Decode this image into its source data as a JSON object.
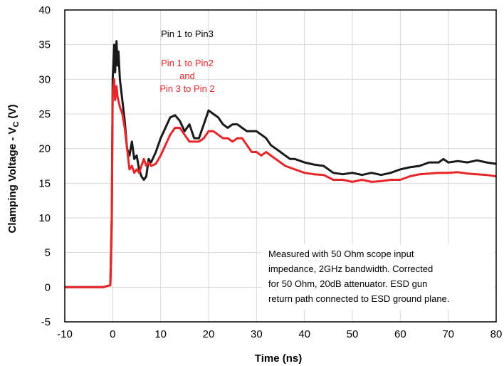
{
  "chart_data": {
    "type": "line",
    "title": "",
    "xlabel": "Time (ns)",
    "ylabel_main": "Clamping Voltage - V",
    "ylabel_sub": "C",
    "ylabel_unit": " (V)",
    "xlim": [
      -10,
      80
    ],
    "ylim": [
      -5,
      40
    ],
    "xticks": [
      -10,
      0,
      10,
      20,
      30,
      40,
      50,
      60,
      70,
      80
    ],
    "yticks": [
      -5,
      0,
      5,
      10,
      15,
      20,
      25,
      30,
      35,
      40
    ],
    "grid": true,
    "series": [
      {
        "name": "Pin 1 to Pin3",
        "color": "#1a1a1a",
        "x": [
          -10,
          -2,
          -0.5,
          -0.2,
          0,
          0.3,
          0.5,
          0.8,
          1.0,
          1.2,
          1.5,
          2.0,
          2.5,
          3.0,
          3.5,
          4.0,
          4.5,
          5.0,
          5.5,
          6.0,
          6.5,
          7.0,
          7.5,
          8.0,
          9.0,
          10.0,
          11.0,
          12.0,
          13.0,
          14.0,
          15.0,
          16.0,
          17.0,
          18.0,
          19.0,
          20.0,
          21.0,
          22.0,
          23.0,
          24.0,
          25.0,
          26.0,
          27.0,
          28.0,
          29.0,
          30.0,
          31.0,
          32.0,
          33.0,
          34.0,
          35.0,
          36.0,
          37.0,
          38.0,
          40.0,
          42.0,
          44.0,
          46.0,
          48.0,
          50.0,
          52.0,
          54.0,
          56.0,
          58.0,
          60.0,
          62.0,
          64.0,
          66.0,
          68.0,
          69.0,
          70.0,
          72.0,
          74.0,
          76.0,
          78.0,
          80.0
        ],
        "y": [
          0,
          0,
          0.3,
          10,
          30,
          35,
          31,
          35.5,
          32,
          34,
          30,
          27,
          24,
          20,
          19,
          21,
          18.5,
          19,
          17,
          16,
          15.5,
          16,
          18.5,
          18,
          19.5,
          21.5,
          23,
          24.5,
          24.8,
          24,
          22.5,
          23.5,
          21.5,
          21.5,
          23.5,
          25.5,
          25,
          24.5,
          23.5,
          23,
          23.5,
          23.5,
          23,
          22.5,
          22.5,
          22.5,
          22,
          21.5,
          20.5,
          20,
          19.5,
          19,
          18.5,
          18.5,
          18,
          17.7,
          17.5,
          16.5,
          16.3,
          16.5,
          16.2,
          16.5,
          16.2,
          16.5,
          17,
          17.3,
          17.5,
          18,
          18,
          18.5,
          18,
          18.2,
          18,
          18.3,
          18,
          17.8
        ]
      },
      {
        "name": "Pin 1 to Pin2 and Pin 3 to Pin 2",
        "color": "#e8262a",
        "x": [
          -10,
          -2,
          -0.5,
          -0.2,
          0,
          0.3,
          0.5,
          0.8,
          1.0,
          1.5,
          2.0,
          2.5,
          3.0,
          3.5,
          4.0,
          4.5,
          5.0,
          5.5,
          6.0,
          6.5,
          7.0,
          7.5,
          8.0,
          9.0,
          10.0,
          11.0,
          12.0,
          13.0,
          14.0,
          15.0,
          16.0,
          17.0,
          18.0,
          19.0,
          20.0,
          21.0,
          22.0,
          23.0,
          24.0,
          25.0,
          26.0,
          27.0,
          28.0,
          29.0,
          30.0,
          31.0,
          32.0,
          33.0,
          34.0,
          35.0,
          36.0,
          38.0,
          40.0,
          42.0,
          44.0,
          46.0,
          48.0,
          50.0,
          52.0,
          54.0,
          56.0,
          58.0,
          60.0,
          62.0,
          64.0,
          66.0,
          68.0,
          70.0,
          72.0,
          74.0,
          76.0,
          78.0,
          80.0
        ],
        "y": [
          0,
          0,
          0.3,
          10,
          28,
          30,
          27,
          29,
          27.5,
          26,
          25,
          23,
          20,
          17,
          17.5,
          16.5,
          17,
          16.5,
          17.5,
          18.5,
          17.5,
          18,
          17.5,
          17.8,
          19,
          20.5,
          22,
          23,
          23,
          22,
          21,
          21,
          21,
          21.5,
          22.5,
          22.5,
          22,
          21.5,
          21.5,
          21,
          21.5,
          21.5,
          20.5,
          19.5,
          19.5,
          19,
          19.5,
          19,
          18.5,
          18,
          17.5,
          17,
          16.5,
          16.3,
          16.2,
          15.5,
          15.5,
          15.2,
          15.5,
          15.2,
          15.3,
          15.5,
          15.5,
          16,
          16.3,
          16.4,
          16.5,
          16.5,
          16.6,
          16.4,
          16.3,
          16.2,
          16
        ]
      }
    ],
    "annotations": {
      "black_label": "Pin 1 to Pin3",
      "red_label_lines": [
        "Pin 1 to Pin2",
        "and",
        "Pin 3 to Pin 2"
      ],
      "note_lines": [
        "Measured with 50 Ohm scope input",
        "impedance, 2GHz bandwidth. Corrected",
        "for 50 Ohm, 20dB attenuator. ESD gun",
        "return path connected to ESD ground plane."
      ]
    }
  }
}
